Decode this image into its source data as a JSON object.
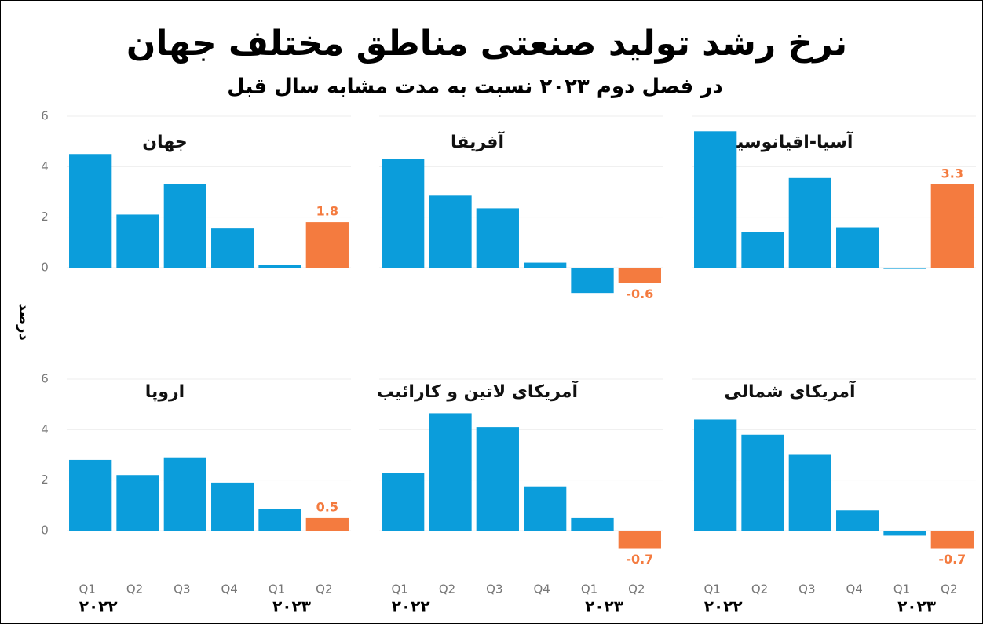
{
  "header": {
    "title": "نرخ رشد تولید صنعتی مناطق مختلف جهان",
    "subtitle": "در فصل دوم ۲۰۲۳ نسبت به مدت مشابه سال قبل",
    "ylabel": "درصد"
  },
  "chart_data": [
    {
      "type": "bar",
      "title": "جهان",
      "values": [
        4.5,
        2.1,
        3.3,
        1.55,
        0.1,
        1.8
      ],
      "value_labels": [
        null,
        null,
        null,
        null,
        null,
        "1.8"
      ],
      "colors": [
        "#0b9ddb",
        "#0b9ddb",
        "#0b9ddb",
        "#0b9ddb",
        "#0b9ddb",
        "#f47b3f"
      ],
      "ylim": [
        -1.5,
        6
      ],
      "yticks": [
        0,
        2,
        4,
        6
      ]
    },
    {
      "type": "bar",
      "title": "آفریقا",
      "values": [
        4.3,
        2.85,
        2.35,
        0.2,
        -1.0,
        -0.6
      ],
      "value_labels": [
        null,
        null,
        null,
        null,
        null,
        "-0.6"
      ],
      "colors": [
        "#0b9ddb",
        "#0b9ddb",
        "#0b9ddb",
        "#0b9ddb",
        "#0b9ddb",
        "#f47b3f"
      ],
      "ylim": [
        -1.5,
        6
      ]
    },
    {
      "type": "bar",
      "title": "آسیا-اقیانوسیه",
      "values": [
        5.4,
        1.4,
        3.55,
        1.6,
        -0.05,
        3.3
      ],
      "value_labels": [
        null,
        null,
        null,
        null,
        null,
        "3.3"
      ],
      "colors": [
        "#0b9ddb",
        "#0b9ddb",
        "#0b9ddb",
        "#0b9ddb",
        "#0b9ddb",
        "#f47b3f"
      ],
      "ylim": [
        -1.5,
        6
      ]
    },
    {
      "type": "bar",
      "title": "اروپا",
      "categories": [
        "Q1",
        "Q2",
        "Q3",
        "Q4",
        "Q1",
        "Q2"
      ],
      "groups": [
        "۲۰۲۲",
        "۲۰۲۳"
      ],
      "values": [
        2.8,
        2.2,
        2.9,
        1.9,
        0.85,
        0.5
      ],
      "value_labels": [
        null,
        null,
        null,
        null,
        null,
        "0.5"
      ],
      "colors": [
        "#0b9ddb",
        "#0b9ddb",
        "#0b9ddb",
        "#0b9ddb",
        "#0b9ddb",
        "#f47b3f"
      ],
      "ylim": [
        -1.5,
        6
      ],
      "yticks": [
        0,
        2,
        4,
        6
      ]
    },
    {
      "type": "bar",
      "title": "آمریکای لاتین و کارائیب",
      "categories": [
        "Q1",
        "Q2",
        "Q3",
        "Q4",
        "Q1",
        "Q2"
      ],
      "groups": [
        "۲۰۲۲",
        "۲۰۲۳"
      ],
      "values": [
        2.3,
        4.65,
        4.1,
        1.75,
        0.5,
        -0.7
      ],
      "value_labels": [
        null,
        null,
        null,
        null,
        null,
        "-0.7"
      ],
      "colors": [
        "#0b9ddb",
        "#0b9ddb",
        "#0b9ddb",
        "#0b9ddb",
        "#0b9ddb",
        "#f47b3f"
      ],
      "ylim": [
        -1.5,
        6
      ]
    },
    {
      "type": "bar",
      "title": "آمریکای شمالی",
      "categories": [
        "Q1",
        "Q2",
        "Q3",
        "Q4",
        "Q1",
        "Q2"
      ],
      "groups": [
        "۲۰۲۲",
        "۲۰۲۳"
      ],
      "values": [
        4.4,
        3.8,
        3.0,
        0.8,
        -0.2,
        -0.7
      ],
      "value_labels": [
        null,
        null,
        null,
        null,
        null,
        "-0.7"
      ],
      "colors": [
        "#0b9ddb",
        "#0b9ddb",
        "#0b9ddb",
        "#0b9ddb",
        "#0b9ddb",
        "#f47b3f"
      ],
      "ylim": [
        -1.5,
        6
      ]
    }
  ]
}
